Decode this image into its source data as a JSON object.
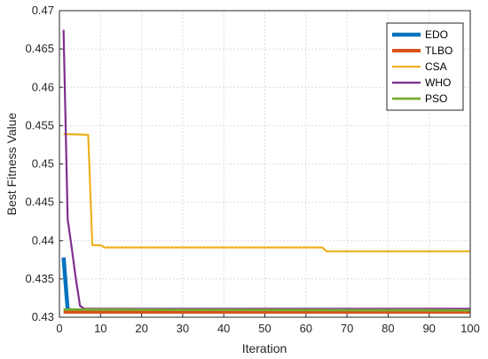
{
  "chart_data": {
    "type": "line",
    "xlabel": "Iteration",
    "ylabel": "Best Fitness Value",
    "xlim": [
      0,
      100
    ],
    "ylim": [
      0.43,
      0.47
    ],
    "xticks": [
      0,
      10,
      20,
      30,
      40,
      50,
      60,
      70,
      80,
      90,
      100
    ],
    "yticks": [
      0.43,
      0.435,
      0.44,
      0.445,
      0.45,
      0.455,
      0.46,
      0.465,
      0.47
    ],
    "grid": true,
    "legend_position": "top-right",
    "series": [
      {
        "name": "EDO",
        "color": "#0072BD",
        "points": [
          [
            1,
            0.4378
          ],
          [
            2,
            0.431
          ],
          [
            3,
            0.4309
          ],
          [
            100,
            0.4309
          ]
        ]
      },
      {
        "name": "TLBO",
        "color": "#D95319",
        "points": [
          [
            1,
            0.4307
          ],
          [
            100,
            0.4307
          ]
        ]
      },
      {
        "name": "CSA",
        "color": "#EDB120",
        "points": [
          [
            1,
            0.4539
          ],
          [
            7,
            0.4538
          ],
          [
            8,
            0.4394
          ],
          [
            10,
            0.4394
          ],
          [
            11,
            0.4391
          ],
          [
            64,
            0.4391
          ],
          [
            65,
            0.4386
          ],
          [
            100,
            0.4386
          ]
        ]
      },
      {
        "name": "WHO",
        "color": "#7E2F8E",
        "points": [
          [
            1,
            0.4675
          ],
          [
            2,
            0.4428
          ],
          [
            3,
            0.439
          ],
          [
            4,
            0.435
          ],
          [
            5,
            0.4315
          ],
          [
            6,
            0.4311
          ],
          [
            100,
            0.4311
          ]
        ]
      },
      {
        "name": "PSO",
        "color": "#77AC30",
        "points": [
          [
            1,
            0.431
          ],
          [
            100,
            0.4309
          ]
        ]
      }
    ]
  }
}
